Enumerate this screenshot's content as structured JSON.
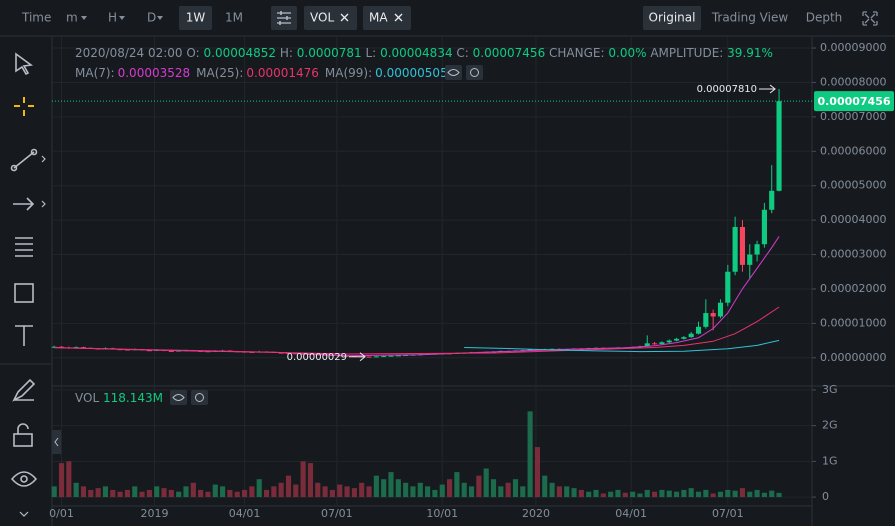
{
  "header": {
    "time": "Time",
    "intervals": [
      "m",
      "H",
      "D",
      "1W",
      "1M"
    ],
    "indicators": [
      "VOL",
      "MA"
    ],
    "views": [
      "Original",
      "Trading View",
      "Depth"
    ]
  },
  "info": {
    "date": "2020/08/24 02:00",
    "labels": [
      "O:",
      "H:",
      "L:",
      "C:"
    ],
    "change_label": "CHANGE:",
    "change": "0.00%",
    "amplitude_label": "AMPLITUDE:",
    "amplitude": "39.91%"
  },
  "chart_data": {
    "type": "candlestick",
    "up_color": "#0ecb81",
    "down_color": "#f6465d",
    "xlim": [
      -0.3,
      103.5
    ],
    "xticks": [
      {
        "value": 1,
        "label": "0/01"
      },
      {
        "value": 13.7,
        "label": "2019"
      },
      {
        "value": 26,
        "label": "04/01"
      },
      {
        "value": 38.6,
        "label": "07/01"
      },
      {
        "value": 53,
        "label": "10/01"
      },
      {
        "value": 65.8,
        "label": "2020"
      },
      {
        "value": 78.8,
        "label": "04/01"
      },
      {
        "value": 92,
        "label": "07/01"
      }
    ],
    "ylim": [
      -8.2e-06,
      9.35e-05
    ],
    "yticks": [
      {
        "value": 0,
        "label": "0.00000000"
      },
      {
        "value": 1e-05,
        "label": "0.00001000"
      },
      {
        "value": 2e-05,
        "label": "0.00002000"
      },
      {
        "value": 3e-05,
        "label": "0.00003000"
      },
      {
        "value": 4e-05,
        "label": "0.00004000"
      },
      {
        "value": 5e-05,
        "label": "0.00005000"
      },
      {
        "value": 6e-05,
        "label": "0.00006000"
      },
      {
        "value": 7e-05,
        "label": "0.00007000"
      },
      {
        "value": 8e-05,
        "label": "0.00008000"
      },
      {
        "value": 9e-05,
        "label": "0.00009000"
      }
    ],
    "ohlc": [
      [
        3e-06,
        3.5e-06,
        2.8e-06,
        3.2e-06
      ],
      [
        3.2e-06,
        3.4e-06,
        2.9e-06,
        3e-06
      ],
      [
        3e-06,
        3.2e-06,
        2.6e-06,
        2.8e-06
      ],
      [
        2.8e-06,
        3.3e-06,
        2.7e-06,
        3.1e-06
      ],
      [
        3.1e-06,
        3.2e-06,
        2.8e-06,
        2.9e-06
      ],
      [
        2.9e-06,
        3e-06,
        2.6e-06,
        2.7e-06
      ],
      [
        2.7e-06,
        2.8e-06,
        2.5e-06,
        2.6e-06
      ],
      [
        2.6e-06,
        3e-06,
        2.5e-06,
        2.8e-06
      ],
      [
        2.8e-06,
        2.9e-06,
        2.4e-06,
        2.5e-06
      ],
      [
        2.5e-06,
        2.6e-06,
        2.3e-06,
        2.4e-06
      ],
      [
        2.4e-06,
        2.5e-06,
        2.2e-06,
        2.3e-06
      ],
      [
        2.3e-06,
        2.7e-06,
        2.2e-06,
        2.5e-06
      ],
      [
        2.5e-06,
        2.6e-06,
        2.1e-06,
        2.2e-06
      ],
      [
        2.2e-06,
        2.3e-06,
        2e-06,
        2.1e-06
      ],
      [
        2.1e-06,
        2.5e-06,
        2e-06,
        2.3e-06
      ],
      [
        2.3e-06,
        2.4e-06,
        1.9e-06,
        2e-06
      ],
      [
        2e-06,
        2.1e-06,
        1.8e-06,
        1.9e-06
      ],
      [
        1.9e-06,
        2.3e-06,
        1.8e-06,
        2.1e-06
      ],
      [
        2.1e-06,
        2.4e-06,
        2e-06,
        2.2e-06
      ],
      [
        2.2e-06,
        2.3e-06,
        1.9e-06,
        2e-06
      ],
      [
        2e-06,
        2.1e-06,
        1.8e-06,
        1.9e-06
      ],
      [
        1.9e-06,
        2e-06,
        1.7e-06,
        1.8e-06
      ],
      [
        1.8e-06,
        2.2e-06,
        1.7e-06,
        2e-06
      ],
      [
        2e-06,
        2.3e-06,
        1.9e-06,
        2.1e-06
      ],
      [
        2.1e-06,
        2.2e-06,
        1.8e-06,
        1.9e-06
      ],
      [
        1.9e-06,
        2e-06,
        1.7e-06,
        1.8e-06
      ],
      [
        1.8e-06,
        1.9e-06,
        1.6e-06,
        1.7e-06
      ],
      [
        1.7e-06,
        1.8e-06,
        1.5e-06,
        1.6e-06
      ],
      [
        1.6e-06,
        2e-06,
        1.5e-06,
        1.8e-06
      ],
      [
        1.8e-06,
        1.9e-06,
        1.6e-06,
        1.7e-06
      ],
      [
        1.7e-06,
        1.8e-06,
        1.4e-06,
        1.5e-06
      ],
      [
        1.5e-06,
        1.6e-06,
        1.3e-06,
        1.4e-06
      ],
      [
        1.4e-06,
        1.5e-06,
        1.2e-06,
        1.3e-06
      ],
      [
        1.3e-06,
        1.4e-06,
        1.1e-06,
        1.2e-06
      ],
      [
        1.2e-06,
        1.3e-06,
        1e-06,
        1.1e-06
      ],
      [
        1.1e-06,
        1.2e-06,
        9e-07,
        1e-06
      ],
      [
        1e-06,
        1.1e-06,
        8e-07,
        9e-07
      ],
      [
        9e-07,
        1e-06,
        7e-07,
        8e-07
      ],
      [
        8e-07,
        9e-07,
        6e-07,
        7e-07
      ],
      [
        7e-07,
        8e-07,
        5e-07,
        6e-07
      ],
      [
        6e-07,
        7e-07,
        4e-07,
        5e-07
      ],
      [
        5e-07,
        6e-07,
        3.5e-07,
        4e-07
      ],
      [
        4e-07,
        5e-07,
        3.1e-07,
        3.5e-07
      ],
      [
        3.5e-07,
        4e-07,
        2.9e-07,
        3e-07
      ],
      [
        3e-07,
        5e-07,
        3e-07,
        4e-07
      ],
      [
        4e-07,
        6e-07,
        3.5e-07,
        5e-07
      ],
      [
        5e-07,
        7e-07,
        4.5e-07,
        6e-07
      ],
      [
        6e-07,
        8e-07,
        5.5e-07,
        7e-07
      ],
      [
        7e-07,
        9e-07,
        6.5e-07,
        8e-07
      ],
      [
        8e-07,
        1e-06,
        7.5e-07,
        9e-07
      ],
      [
        9e-07,
        1.1e-06,
        8.5e-07,
        1e-06
      ],
      [
        1e-06,
        1.2e-06,
        9.5e-07,
        1.1e-06
      ],
      [
        1.1e-06,
        1.3e-06,
        1e-06,
        1.2e-06
      ],
      [
        1.2e-06,
        1.4e-06,
        1.1e-06,
        1.3e-06
      ],
      [
        1.3e-06,
        1.4e-06,
        1.1e-06,
        1.2e-06
      ],
      [
        1.2e-06,
        1.5e-06,
        1.1e-06,
        1.4e-06
      ],
      [
        1.4e-06,
        1.6e-06,
        1.3e-06,
        1.5e-06
      ],
      [
        1.5e-06,
        1.7e-06,
        1.4e-06,
        1.6e-06
      ],
      [
        1.6e-06,
        1.7e-06,
        1.4e-06,
        1.5e-06
      ],
      [
        1.5e-06,
        1.8e-06,
        1.4e-06,
        1.7e-06
      ],
      [
        1.7e-06,
        1.9e-06,
        1.6e-06,
        1.8e-06
      ],
      [
        1.8e-06,
        2.1e-06,
        1.7e-06,
        2e-06
      ],
      [
        2e-06,
        2.1e-06,
        1.8e-06,
        1.9e-06
      ],
      [
        1.9e-06,
        2.2e-06,
        1.8e-06,
        2.1e-06
      ],
      [
        2.1e-06,
        2.3e-06,
        2e-06,
        2.2e-06
      ],
      [
        2.2e-06,
        2.6e-06,
        2.1e-06,
        2.4e-06
      ],
      [
        2.4e-06,
        2.5e-06,
        2.2e-06,
        2.3e-06
      ],
      [
        2.3e-06,
        2.6e-06,
        2.2e-06,
        2.5e-06
      ],
      [
        2.5e-06,
        2.7e-06,
        2.4e-06,
        2.6e-06
      ],
      [
        2.6e-06,
        2.7e-06,
        2.3e-06,
        2.4e-06
      ],
      [
        2.4e-06,
        2.6e-06,
        2.3e-06,
        2.5e-06
      ],
      [
        2.5e-06,
        2.8e-06,
        2.4e-06,
        2.7e-06
      ],
      [
        2.7e-06,
        2.8e-06,
        2.5e-06,
        2.6e-06
      ],
      [
        2.6e-06,
        2.9e-06,
        2.5e-06,
        2.8e-06
      ],
      [
        2.8e-06,
        3e-06,
        2.7e-06,
        2.9e-06
      ],
      [
        2.9e-06,
        3e-06,
        2.6e-06,
        2.7e-06
      ],
      [
        2.7e-06,
        2.9e-06,
        2.6e-06,
        2.8e-06
      ],
      [
        2.8e-06,
        3.1e-06,
        2.7e-06,
        3e-06
      ],
      [
        3e-06,
        3.1e-06,
        2.8e-06,
        2.9e-06
      ],
      [
        2.9e-06,
        3.2e-06,
        2.8e-06,
        3.1e-06
      ],
      [
        3.1e-06,
        3.5e-06,
        3e-06,
        3.3e-06
      ],
      [
        3.3e-06,
        6.5e-06,
        3.2e-06,
        4.2e-06
      ],
      [
        4.2e-06,
        4.6e-06,
        3.8e-06,
        4e-06
      ],
      [
        4e-06,
        4.8e-06,
        3.9e-06,
        4.5e-06
      ],
      [
        4.5e-06,
        5.3e-06,
        4.3e-06,
        5e-06
      ],
      [
        5e-06,
        5.8e-06,
        4.8e-06,
        5.5e-06
      ],
      [
        5.5e-06,
        6.3e-06,
        5.3e-06,
        6e-06
      ],
      [
        6e-06,
        7.5e-06,
        5.8e-06,
        7e-06
      ],
      [
        7e-06,
        1.05e-05,
        6.8e-06,
        9e-06
      ],
      [
        9e-06,
        1.7e-05,
        8.5e-06,
        1.3e-05
      ],
      [
        1.3e-05,
        1.4e-05,
        8e-06,
        1.2e-05
      ],
      [
        1.2e-05,
        1.7e-05,
        1.15e-05,
        1.6e-05
      ],
      [
        1.6e-05,
        2.7e-05,
        1.5e-05,
        2.5e-05
      ],
      [
        2.5e-05,
        4.1e-05,
        2.4e-05,
        3.8e-05
      ],
      [
        3.8e-05,
        4e-05,
        2.5e-05,
        2.7e-05
      ],
      [
        2.7e-05,
        3.3e-05,
        2.3e-05,
        3e-05
      ],
      [
        3e-05,
        3.4e-05,
        2.8e-05,
        3.3e-05
      ],
      [
        3.3e-05,
        4.5e-05,
        3.2e-05,
        4.3e-05
      ],
      [
        4.3e-05,
        5.6e-05,
        4.2e-05,
        4.852e-05
      ],
      [
        4.852e-05,
        7.81e-05,
        4.834e-05,
        7.456e-05
      ]
    ],
    "series": [
      {
        "name": "MA(7):",
        "color": "#d63bd0",
        "x": [
          0,
          10,
          20,
          30,
          40,
          50,
          60,
          70,
          78,
          82,
          85,
          88,
          90,
          92,
          94,
          96,
          98,
          99
        ],
        "values": [
          3e-06,
          2.4e-06,
          1.95e-06,
          1.6e-06,
          6e-07,
          9e-07,
          1.7e-06,
          2.5e-06,
          2.9e-06,
          3.5e-06,
          4.4e-06,
          5.8e-06,
          8.5e-06,
          1.3e-05,
          2e-05,
          2.6e-05,
          3.2e-05,
          3.528e-05
        ]
      },
      {
        "name": "MA(25):",
        "color": "#e8336b",
        "x": [
          0,
          20,
          40,
          60,
          75,
          82,
          86,
          90,
          93,
          96,
          99
        ],
        "values": [
          2.9e-06,
          2.1e-06,
          1.1e-06,
          1.4e-06,
          2.5e-06,
          3e-06,
          3.6e-06,
          4.8e-06,
          7e-06,
          1.05e-05,
          1.476e-05
        ]
      },
      {
        "name": "MA(99):",
        "color": "#2fc2d6",
        "x": [
          56,
          62,
          68,
          74,
          80,
          86,
          92,
          96,
          99
        ],
        "values": [
          3e-06,
          2.7e-06,
          2.3e-06,
          2e-06,
          1.8e-06,
          1.9e-06,
          2.6e-06,
          3.6e-06,
          5.05e-06
        ]
      }
    ],
    "annotations": [
      {
        "value": 7.81e-05,
        "label": "0.00007810"
      },
      {
        "value": 2.9e-07,
        "label": "0.00000029"
      }
    ],
    "volume": {
      "legend": "VOL",
      "legend_value": "118.143M",
      "ylim": [
        -0.25,
        3.11
      ],
      "yticks": [
        0,
        {
          "value": 1,
          "label": "1G"
        },
        {
          "value": 2,
          "label": "2G"
        },
        {
          "value": 3,
          "label": "3G"
        }
      ],
      "values": [
        0.3,
        0.95,
        1.0,
        0.4,
        0.3,
        0.2,
        0.25,
        0.3,
        0.2,
        0.15,
        0.2,
        0.3,
        0.15,
        0.2,
        0.3,
        0.25,
        0.2,
        0.15,
        0.3,
        0.4,
        0.2,
        0.15,
        0.35,
        0.3,
        0.2,
        0.15,
        0.2,
        0.3,
        0.5,
        0.2,
        0.3,
        0.4,
        0.6,
        0.35,
        1.0,
        0.95,
        0.4,
        0.3,
        0.2,
        0.35,
        0.3,
        0.25,
        0.4,
        0.3,
        0.6,
        0.5,
        0.7,
        0.5,
        0.4,
        0.3,
        0.4,
        0.3,
        0.2,
        0.35,
        0.5,
        0.7,
        0.4,
        0.3,
        0.6,
        0.8,
        0.5,
        0.3,
        0.4,
        0.5,
        0.3,
        2.4,
        1.4,
        0.6,
        0.4,
        0.3,
        0.3,
        0.25,
        0.2,
        0.15,
        0.2,
        0.1,
        0.15,
        0.2,
        0.12,
        0.15,
        0.1,
        0.2,
        0.15,
        0.2,
        0.18,
        0.15,
        0.2,
        0.25,
        0.15,
        0.2,
        0.1,
        0.15,
        0.2,
        0.18,
        0.25,
        0.15,
        0.2,
        0.12,
        0.18,
        0.118143
      ]
    }
  }
}
